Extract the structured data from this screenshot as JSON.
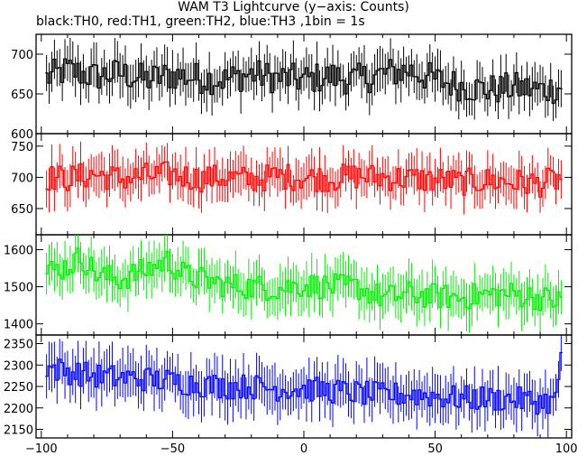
{
  "chart_data": {
    "type": "line",
    "title": "WAM T3 Lightcurve (y−axis: Counts)",
    "subtitle": "black:TH0, red:TH1, green:TH2, blue:TH3 ,1bin = 1s",
    "xlim": [
      -102,
      102
    ],
    "x_ticks": [
      -100,
      -50,
      0,
      50,
      100
    ],
    "x_tick_labels": [
      "−100",
      "−50",
      "0",
      "50",
      "100"
    ],
    "x": {
      "start": -98,
      "end": 98,
      "step": 1
    },
    "panels": [
      {
        "series": "TH0",
        "color": "#000000",
        "ylim": [
          600,
          725
        ],
        "y_ticks": [
          600,
          650,
          700
        ],
        "error": 24,
        "anchors": [
          [
            -98,
            670
          ],
          [
            -90,
            680
          ],
          [
            -80,
            672
          ],
          [
            -70,
            676
          ],
          [
            -60,
            668
          ],
          [
            -50,
            674
          ],
          [
            -40,
            670
          ],
          [
            -30,
            668
          ],
          [
            -20,
            675
          ],
          [
            -10,
            670
          ],
          [
            0,
            668
          ],
          [
            10,
            672
          ],
          [
            20,
            668
          ],
          [
            30,
            675
          ],
          [
            40,
            680
          ],
          [
            50,
            668
          ],
          [
            60,
            660
          ],
          [
            70,
            655
          ],
          [
            80,
            658
          ],
          [
            90,
            655
          ],
          [
            98,
            658
          ]
        ],
        "noise": 20
      },
      {
        "series": "TH1",
        "color": "#ff0000",
        "ylim": [
          608,
          770
        ],
        "y_ticks": [
          650,
          700,
          750
        ],
        "error": 30,
        "anchors": [
          [
            -98,
            700
          ],
          [
            -90,
            698
          ],
          [
            -80,
            705
          ],
          [
            -70,
            698
          ],
          [
            -60,
            702
          ],
          [
            -50,
            705
          ],
          [
            -40,
            698
          ],
          [
            -30,
            700
          ],
          [
            -20,
            696
          ],
          [
            -10,
            702
          ],
          [
            0,
            700
          ],
          [
            10,
            698
          ],
          [
            20,
            702
          ],
          [
            30,
            700
          ],
          [
            40,
            698
          ],
          [
            50,
            696
          ],
          [
            60,
            692
          ],
          [
            70,
            695
          ],
          [
            80,
            692
          ],
          [
            90,
            690
          ],
          [
            98,
            698
          ]
        ],
        "noise": 22
      },
      {
        "series": "TH2",
        "color": "#00ee00",
        "ylim": [
          1370,
          1640
        ],
        "y_ticks": [
          1400,
          1500,
          1600
        ],
        "error": 55,
        "anchors": [
          [
            -98,
            1540
          ],
          [
            -90,
            1555
          ],
          [
            -85,
            1580
          ],
          [
            -78,
            1530
          ],
          [
            -70,
            1520
          ],
          [
            -60,
            1545
          ],
          [
            -52,
            1570
          ],
          [
            -45,
            1530
          ],
          [
            -30,
            1505
          ],
          [
            -10,
            1495
          ],
          [
            0,
            1505
          ],
          [
            10,
            1500
          ],
          [
            20,
            1500
          ],
          [
            30,
            1470
          ],
          [
            40,
            1480
          ],
          [
            50,
            1475
          ],
          [
            60,
            1470
          ],
          [
            70,
            1480
          ],
          [
            80,
            1480
          ],
          [
            90,
            1470
          ],
          [
            98,
            1460
          ]
        ],
        "noise": 35
      },
      {
        "series": "TH3",
        "color": "#0000ff",
        "ylim": [
          2130,
          2370
        ],
        "y_ticks": [
          2150,
          2200,
          2250,
          2300,
          2350
        ],
        "error": 50,
        "anchors": [
          [
            -98,
            2295
          ],
          [
            -90,
            2285
          ],
          [
            -80,
            2275
          ],
          [
            -70,
            2270
          ],
          [
            -60,
            2268
          ],
          [
            -50,
            2262
          ],
          [
            -40,
            2255
          ],
          [
            -30,
            2250
          ],
          [
            -20,
            2250
          ],
          [
            -10,
            2245
          ],
          [
            0,
            2245
          ],
          [
            10,
            2240
          ],
          [
            20,
            2235
          ],
          [
            30,
            2230
          ],
          [
            40,
            2232
          ],
          [
            50,
            2228
          ],
          [
            60,
            2222
          ],
          [
            70,
            2222
          ],
          [
            80,
            2220
          ],
          [
            90,
            2215
          ],
          [
            96,
            2215
          ],
          [
            98,
            2330
          ]
        ],
        "noise": 30
      }
    ]
  }
}
